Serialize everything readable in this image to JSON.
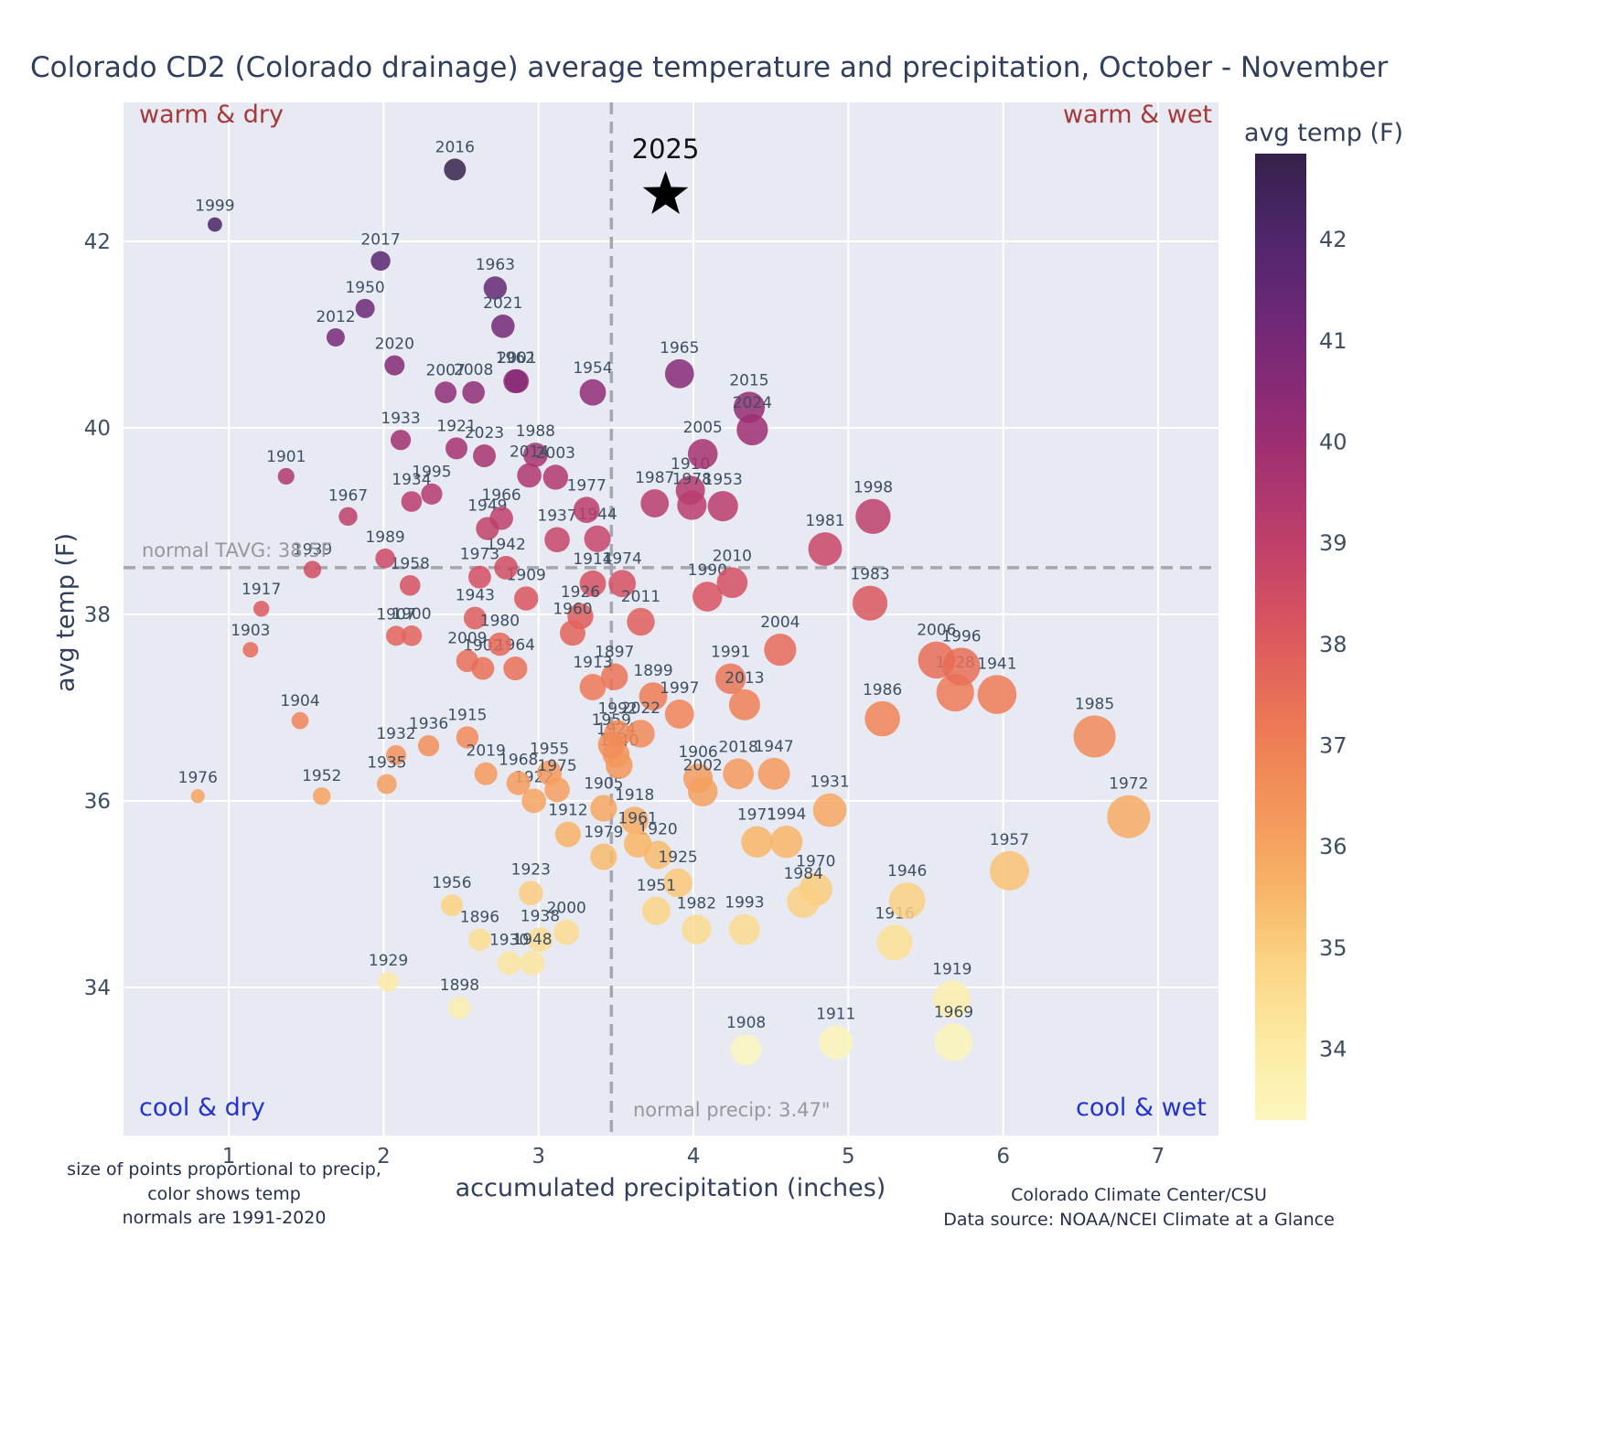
{
  "chart_data": {
    "type": "scatter",
    "title": "Colorado CD2 (Colorado drainage) average temperature and precipitation, October - November",
    "xlabel": "accumulated precipitation (inches)",
    "ylabel": "avg temp (F)",
    "xlim": [
      0.32,
      7.39
    ],
    "ylim": [
      32.41,
      43.49
    ],
    "xticks": [
      1,
      2,
      3,
      4,
      5,
      6,
      7
    ],
    "yticks": [
      34,
      36,
      38,
      40,
      42
    ],
    "grid": true,
    "plot_bg": "#e8eaf3",
    "grid_color": "#ffffff",
    "dash_color": "#a6a6ae",
    "label_color": "#3d4f63",
    "normal_tavg": 38.5,
    "normal_precip": 3.47,
    "normal_tavg_label": "normal TAVG: 38.5F",
    "normal_precip_label": "normal precip: 3.47\"",
    "quadrants": {
      "top_left": "warm & dry",
      "top_right": "warm & wet",
      "bottom_left": "cool & dry",
      "bottom_right": "cool & wet"
    },
    "quadrant_colors": {
      "warm": "#a63939",
      "cool": "#2433cf"
    },
    "star": {
      "year": "2025",
      "precip": 3.82,
      "temp": 42.5,
      "color": "#000000"
    },
    "colorbar": {
      "title": "avg temp (F)",
      "ticks": [
        34,
        35,
        36,
        37,
        38,
        39,
        40,
        41,
        42
      ],
      "min": 33.3,
      "max": 42.85
    },
    "colormap": [
      [
        33.3,
        "#fcf6bd"
      ],
      [
        34.0,
        "#fdeca6"
      ],
      [
        34.8,
        "#fbd687"
      ],
      [
        35.5,
        "#f8b768"
      ],
      [
        36.2,
        "#f59c5d"
      ],
      [
        37.0,
        "#ef8055"
      ],
      [
        37.6,
        "#e66a58"
      ],
      [
        38.2,
        "#d9545f"
      ],
      [
        38.8,
        "#c54468"
      ],
      [
        39.4,
        "#b2396e"
      ],
      [
        40.0,
        "#9c2e72"
      ],
      [
        40.6,
        "#862a76"
      ],
      [
        41.2,
        "#6f2876"
      ],
      [
        41.8,
        "#572771"
      ],
      [
        42.4,
        "#42235d"
      ],
      [
        42.9,
        "#342147"
      ]
    ],
    "points_format": [
      "year",
      "precip_in",
      "temp_F"
    ],
    "points": [
      [
        1896,
        2.62,
        34.51
      ],
      [
        1897,
        3.49,
        37.33
      ],
      [
        1898,
        2.49,
        33.78
      ],
      [
        1899,
        3.74,
        37.12
      ],
      [
        1900,
        2.18,
        37.77
      ],
      [
        1901,
        1.37,
        39.48
      ],
      [
        1902,
        2.64,
        37.42
      ],
      [
        1903,
        1.14,
        37.62
      ],
      [
        1904,
        1.46,
        36.86
      ],
      [
        1905,
        3.42,
        35.92
      ],
      [
        1906,
        4.03,
        36.24
      ],
      [
        1907,
        2.08,
        37.77
      ],
      [
        1908,
        4.34,
        33.33
      ],
      [
        1909,
        2.92,
        38.17
      ],
      [
        1910,
        3.98,
        39.33
      ],
      [
        1911,
        4.92,
        33.41
      ],
      [
        1912,
        3.19,
        35.64
      ],
      [
        1913,
        3.35,
        37.22
      ],
      [
        1914,
        3.35,
        38.33
      ],
      [
        1915,
        2.54,
        36.68
      ],
      [
        1916,
        5.3,
        34.48
      ],
      [
        1917,
        1.21,
        38.06
      ],
      [
        1918,
        3.62,
        35.79
      ],
      [
        1919,
        5.67,
        33.87
      ],
      [
        1920,
        3.77,
        35.42
      ],
      [
        1921,
        2.47,
        39.78
      ],
      [
        1922,
        2.97,
        36.0
      ],
      [
        1923,
        2.95,
        35.01
      ],
      [
        1924,
        3.5,
        36.5
      ],
      [
        1925,
        3.9,
        35.12
      ],
      [
        1926,
        3.27,
        37.98
      ],
      [
        1928,
        5.69,
        37.16
      ],
      [
        1929,
        2.03,
        34.06
      ],
      [
        1930,
        2.81,
        34.26
      ],
      [
        1931,
        4.88,
        35.9
      ],
      [
        1932,
        2.08,
        36.49
      ],
      [
        1933,
        2.11,
        39.87
      ],
      [
        1934,
        2.18,
        39.21
      ],
      [
        1935,
        2.02,
        36.18
      ],
      [
        1936,
        2.29,
        36.59
      ],
      [
        1937,
        3.12,
        38.8
      ],
      [
        1938,
        3.01,
        34.51
      ],
      [
        1939,
        1.54,
        38.48
      ],
      [
        1940,
        3.52,
        36.38
      ],
      [
        1941,
        5.96,
        37.14
      ],
      [
        1942,
        2.79,
        38.5
      ],
      [
        1943,
        2.59,
        37.96
      ],
      [
        1944,
        3.38,
        38.81
      ],
      [
        1946,
        5.38,
        34.93
      ],
      [
        1947,
        4.52,
        36.29
      ],
      [
        1948,
        2.96,
        34.26
      ],
      [
        1949,
        2.67,
        38.92
      ],
      [
        1950,
        1.88,
        41.28
      ],
      [
        1951,
        3.76,
        34.82
      ],
      [
        1952,
        1.6,
        36.05
      ],
      [
        1953,
        4.19,
        39.16
      ],
      [
        1954,
        3.35,
        40.38
      ],
      [
        1955,
        3.07,
        36.3
      ],
      [
        1956,
        2.44,
        34.88
      ],
      [
        1957,
        6.04,
        35.25
      ],
      [
        1958,
        2.17,
        38.31
      ],
      [
        1959,
        3.47,
        36.6
      ],
      [
        1960,
        3.22,
        37.8
      ],
      [
        1961,
        3.64,
        35.54
      ],
      [
        1962,
        2.85,
        40.5
      ],
      [
        1963,
        2.72,
        41.5
      ],
      [
        1964,
        2.85,
        37.42
      ],
      [
        1965,
        3.91,
        40.58
      ],
      [
        1966,
        2.76,
        39.03
      ],
      [
        1967,
        1.77,
        39.05
      ],
      [
        1968,
        2.87,
        36.19
      ],
      [
        1969,
        5.68,
        33.41
      ],
      [
        1970,
        4.79,
        35.05
      ],
      [
        1971,
        4.41,
        35.56
      ],
      [
        1972,
        6.81,
        35.83
      ],
      [
        1973,
        2.62,
        38.4
      ],
      [
        1974,
        3.54,
        38.33
      ],
      [
        1975,
        3.12,
        36.12
      ],
      [
        1976,
        0.8,
        36.05
      ],
      [
        1977,
        3.31,
        39.12
      ],
      [
        1978,
        3.99,
        39.17
      ],
      [
        1979,
        3.42,
        35.4
      ],
      [
        1980,
        2.75,
        37.68
      ],
      [
        1981,
        4.85,
        38.7
      ],
      [
        1982,
        4.02,
        34.62
      ],
      [
        1983,
        5.14,
        38.12
      ],
      [
        1984,
        4.71,
        34.92
      ],
      [
        1985,
        6.59,
        36.69
      ],
      [
        1986,
        5.22,
        36.88
      ],
      [
        1987,
        3.75,
        39.19
      ],
      [
        1988,
        2.98,
        39.71
      ],
      [
        1989,
        2.01,
        38.6
      ],
      [
        1990,
        4.09,
        38.19
      ],
      [
        1991,
        4.24,
        37.31
      ],
      [
        1992,
        3.51,
        36.72
      ],
      [
        1993,
        4.33,
        34.62
      ],
      [
        1994,
        4.6,
        35.56
      ],
      [
        1995,
        2.31,
        39.29
      ],
      [
        1996,
        5.73,
        37.44
      ],
      [
        1997,
        3.91,
        36.93
      ],
      [
        1998,
        5.16,
        39.05
      ],
      [
        1999,
        0.91,
        42.18
      ],
      [
        2000,
        3.18,
        34.59
      ],
      [
        2001,
        2.86,
        40.5
      ],
      [
        2002,
        4.06,
        36.1
      ],
      [
        2003,
        3.11,
        39.47
      ],
      [
        2004,
        4.56,
        37.62
      ],
      [
        2005,
        4.06,
        39.72
      ],
      [
        2006,
        5.57,
        37.51
      ],
      [
        2007,
        2.4,
        40.38
      ],
      [
        2008,
        2.58,
        40.38
      ],
      [
        2009,
        2.54,
        37.5
      ],
      [
        2010,
        4.25,
        38.34
      ],
      [
        2011,
        3.66,
        37.92
      ],
      [
        2012,
        1.69,
        40.97
      ],
      [
        2013,
        4.33,
        37.03
      ],
      [
        2014,
        2.94,
        39.49
      ],
      [
        2015,
        4.36,
        40.22
      ],
      [
        2016,
        2.46,
        42.77
      ],
      [
        2017,
        1.98,
        41.79
      ],
      [
        2018,
        4.29,
        36.29
      ],
      [
        2019,
        2.66,
        36.29
      ],
      [
        2020,
        2.07,
        40.67
      ],
      [
        2021,
        2.77,
        41.09
      ],
      [
        2022,
        3.66,
        36.72
      ],
      [
        2023,
        2.65,
        39.7
      ],
      [
        2024,
        4.38,
        39.98
      ]
    ],
    "notes": {
      "left_lines": [
        "size of points proportional to precip,",
        "color shows temp",
        "normals are 1991-2020"
      ],
      "right_lines": [
        "Colorado Climate Center/CSU",
        "Data source: NOAA/NCEI Climate at a Glance"
      ]
    }
  }
}
